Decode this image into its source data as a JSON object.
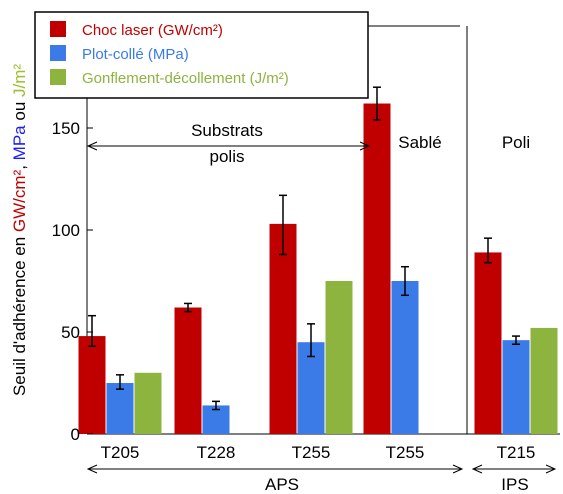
{
  "chart_data": {
    "type": "bar",
    "categories": [
      "T205",
      "T228",
      "T255",
      "T255",
      "T215"
    ],
    "series": [
      {
        "name": "Choc laser (GW/cm²)",
        "color": "#c00000",
        "values": [
          48,
          62,
          103,
          162,
          89
        ],
        "errors": [
          [
            43,
            58
          ],
          [
            60,
            64
          ],
          [
            88,
            117
          ],
          [
            154,
            170
          ],
          [
            84,
            96
          ]
        ]
      },
      {
        "name": "Plot-collé (MPa)",
        "color": "#3a7be8",
        "values": [
          25,
          14,
          45,
          75,
          46
        ],
        "errors": [
          [
            22,
            29
          ],
          [
            12,
            16
          ],
          [
            38,
            54
          ],
          [
            68,
            82
          ],
          [
            44,
            48
          ]
        ]
      },
      {
        "name": "Gonflement-décollement (J/m²)",
        "color": "#8db43e",
        "values": [
          30,
          null,
          75,
          null,
          52
        ],
        "errors": [
          null,
          null,
          null,
          null,
          null
        ]
      }
    ],
    "ylabel": {
      "prefix": "Seuil d'adhérence en ",
      "unit1": "GW/cm²",
      "sep1": ", ",
      "unit2": "MPa",
      "sep2": " ou ",
      "unit3": "J/m²",
      "color1": "#c00000",
      "color2": "#1a1aff",
      "color3": "#9cbf2e"
    },
    "yticks": [
      0,
      50,
      100,
      150
    ],
    "ylim": [
      0,
      200
    ],
    "grid": false,
    "legend_position": "top-left",
    "annotations": {
      "substrats_line1": "Substrats",
      "substrats_line2": "polis",
      "sable": "Sablé",
      "poli": "Poli",
      "aps": "APS",
      "ips": "IPS"
    }
  }
}
